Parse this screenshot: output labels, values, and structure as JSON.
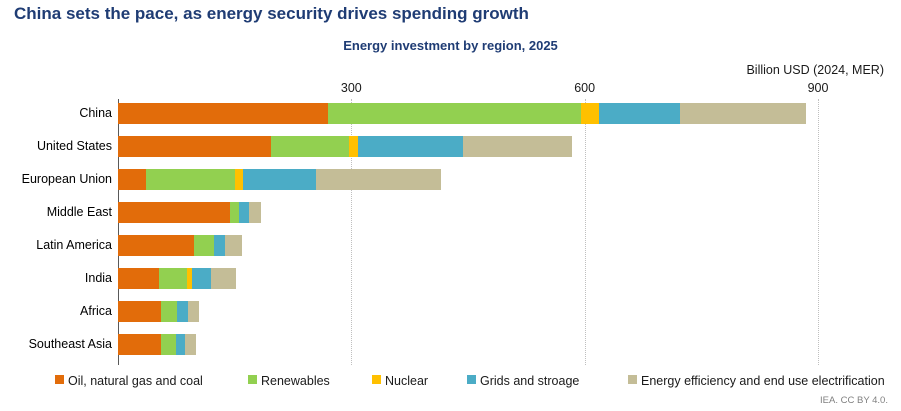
{
  "page": {
    "title": "China sets the pace, as energy security drives spending growth",
    "subtitle": "Energy investment by region, 2025",
    "axis_unit_label": "Billion USD (2024, MER)",
    "attribution": "IEA. CC BY 4.0."
  },
  "colors": {
    "title_text": "#1F3C74",
    "oil_gas_coal": "#E26C0A",
    "renewables": "#92D050",
    "nuclear": "#FFC000",
    "grids_storage": "#4BACC6",
    "efficiency": "#C4BD97",
    "gridline": "#BFBFBF",
    "axis_line": "#595959",
    "attribution_text": "#808080"
  },
  "chart_data": {
    "type": "bar",
    "orientation": "horizontal",
    "stacked": true,
    "title": "Energy investment by region, 2025",
    "xlabel": "Billion USD (2024, MER)",
    "ylabel": "",
    "xlim": [
      0,
      990
    ],
    "x_ticks": [
      300,
      600,
      900
    ],
    "gridlines": "vertical-dotted",
    "legend_position": "bottom",
    "categories": [
      "China",
      "United States",
      "European Union",
      "Middle East",
      "Latin America",
      "India",
      "Africa",
      "Southeast Asia"
    ],
    "series": [
      {
        "name": "Oil, natural gas and coal",
        "color": "#E26C0A",
        "values": [
          270,
          197,
          36,
          144,
          98,
          53,
          55,
          55
        ]
      },
      {
        "name": "Renewables",
        "color": "#92D050",
        "values": [
          325,
          100,
          115,
          12,
          26,
          36,
          21,
          19
        ]
      },
      {
        "name": "Nuclear",
        "color": "#FFC000",
        "values": [
          23,
          12,
          10,
          0,
          0,
          6,
          0,
          0
        ]
      },
      {
        "name": "Grids and stroage",
        "color": "#4BACC6",
        "values": [
          105,
          135,
          94,
          13,
          13,
          24,
          14,
          12
        ]
      },
      {
        "name": "Energy efficiency and end use electrification",
        "color": "#C4BD97",
        "values": [
          162,
          140,
          160,
          15,
          23,
          33,
          14,
          14
        ]
      }
    ],
    "totals_estimated": [
      885,
      584,
      415,
      184,
      160,
      152,
      104,
      100
    ]
  },
  "legend": {
    "items": [
      "Oil, natural gas and coal",
      "Renewables",
      "Nuclear",
      "Grids and stroage",
      "Energy efficiency and end use electrification"
    ]
  }
}
